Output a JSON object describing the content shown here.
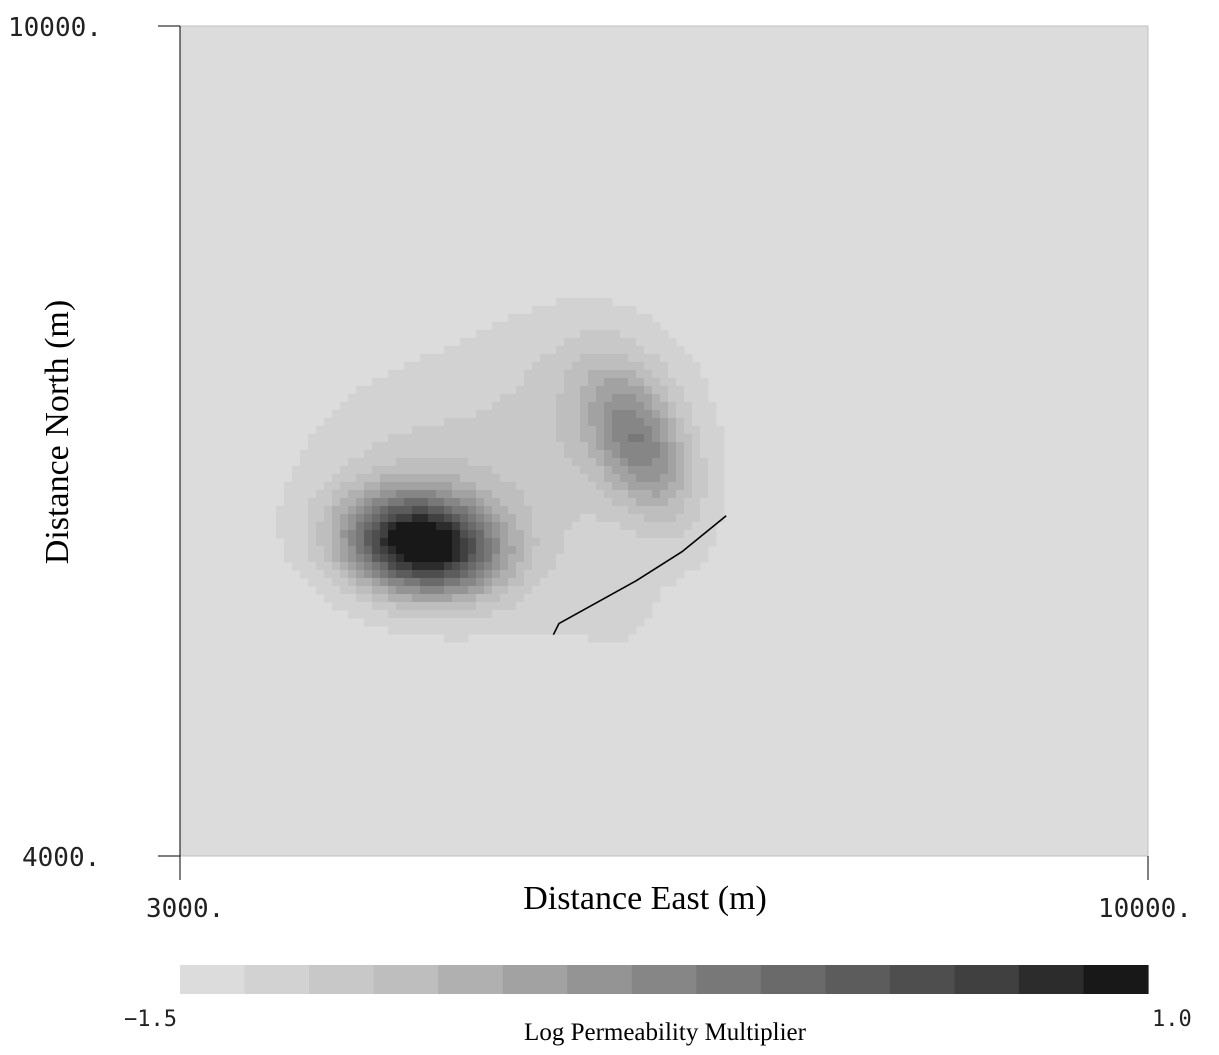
{
  "chart_data": {
    "type": "heatmap",
    "xlabel": "Distance East (m)",
    "ylabel": "Distance North (m)",
    "xlim": [
      3000,
      10000
    ],
    "ylim": [
      4000,
      10000
    ],
    "x_tick_labels": [
      "3000.",
      "10000."
    ],
    "y_tick_labels": [
      "4000.",
      "10000."
    ],
    "grid": false,
    "background_value": -1.5,
    "colorbar": {
      "title": "Log Permeability Multiplier",
      "min": -1.5,
      "max": 1.0,
      "min_label": "−1.5",
      "max_label": "1.0",
      "colors": [
        "#dcdcdc",
        "#d2d2d2",
        "#c8c8c8",
        "#bebebe",
        "#b0b0b0",
        "#a2a2a2",
        "#949494",
        "#868686",
        "#787878",
        "#6a6a6a",
        "#5c5c5c",
        "#4e4e4e",
        "#404040",
        "#2c2c2c",
        "#181818"
      ]
    },
    "anomalies": [
      {
        "name": "lower-left peak",
        "x": 4750,
        "y": 6250,
        "peak": 1.0
      },
      {
        "name": "upper-right peak",
        "x": 6300,
        "y": 7050,
        "peak": -0.3
      }
    ],
    "trace_line": {
      "points": [
        [
          5700,
          5600
        ],
        [
          5740,
          5680
        ],
        [
          6300,
          5990
        ],
        [
          6630,
          6200
        ],
        [
          6950,
          6460
        ]
      ]
    }
  }
}
